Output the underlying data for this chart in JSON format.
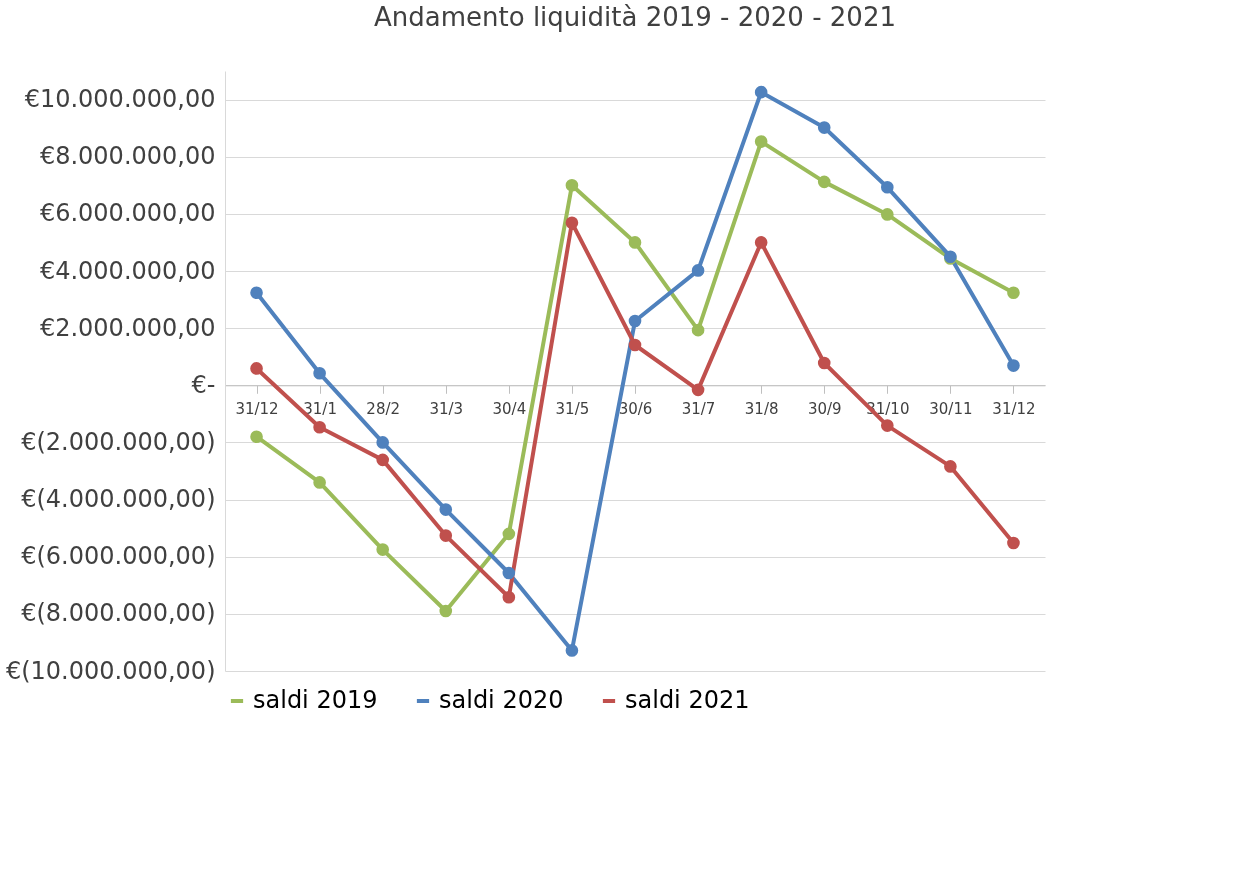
{
  "chart_data": {
    "type": "line",
    "title": "Andamento liquidità 2019 - 2020 - 2021",
    "categories": [
      "31/12",
      "31/1",
      "28/2",
      "31/3",
      "30/4",
      "31/5",
      "30/6",
      "31/7",
      "31/8",
      "30/9",
      "31/10",
      "30/11",
      "31/12"
    ],
    "series": [
      {
        "name": "saldi 2019",
        "color": "#9bbb59",
        "values": [
          -1800000,
          -3400000,
          -5750000,
          -7900000,
          -5200000,
          7000000,
          5000000,
          1930000,
          8530000,
          7120000,
          5980000,
          4440000,
          3240000
        ]
      },
      {
        "name": "saldi 2020",
        "color": "#4f81bd",
        "values": [
          3240000,
          420000,
          -2000000,
          -4350000,
          -6570000,
          -9280000,
          2250000,
          4020000,
          10260000,
          9020000,
          6930000,
          4500000,
          690000
        ]
      },
      {
        "name": "saldi 2021",
        "color": "#c0504d",
        "values": [
          590000,
          -1470000,
          -2610000,
          -5260000,
          -7420000,
          5690000,
          1410000,
          -160000,
          5000000,
          780000,
          -1410000,
          -2840000,
          -5520000
        ]
      }
    ],
    "ylim": [
      -10000000,
      11000000
    ],
    "yticks": [
      {
        "value": -10000000,
        "label": "€(10.000.000,00)"
      },
      {
        "value": -8000000,
        "label": "€(8.000.000,00)"
      },
      {
        "value": -6000000,
        "label": "€(6.000.000,00)"
      },
      {
        "value": -4000000,
        "label": "€(4.000.000,00)"
      },
      {
        "value": -2000000,
        "label": "€(2.000.000,00)"
      },
      {
        "value": 0,
        "label": "€-"
      },
      {
        "value": 2000000,
        "label": "€2.000.000,00"
      },
      {
        "value": 4000000,
        "label": "€4.000.000,00"
      },
      {
        "value": 6000000,
        "label": "€6.000.000,00"
      },
      {
        "value": 8000000,
        "label": "€8.000.000,00"
      },
      {
        "value": 10000000,
        "label": "€10.000.000,00"
      }
    ],
    "grid": "y",
    "legend": "bottom",
    "marker": "circle",
    "line_style": "solid"
  }
}
